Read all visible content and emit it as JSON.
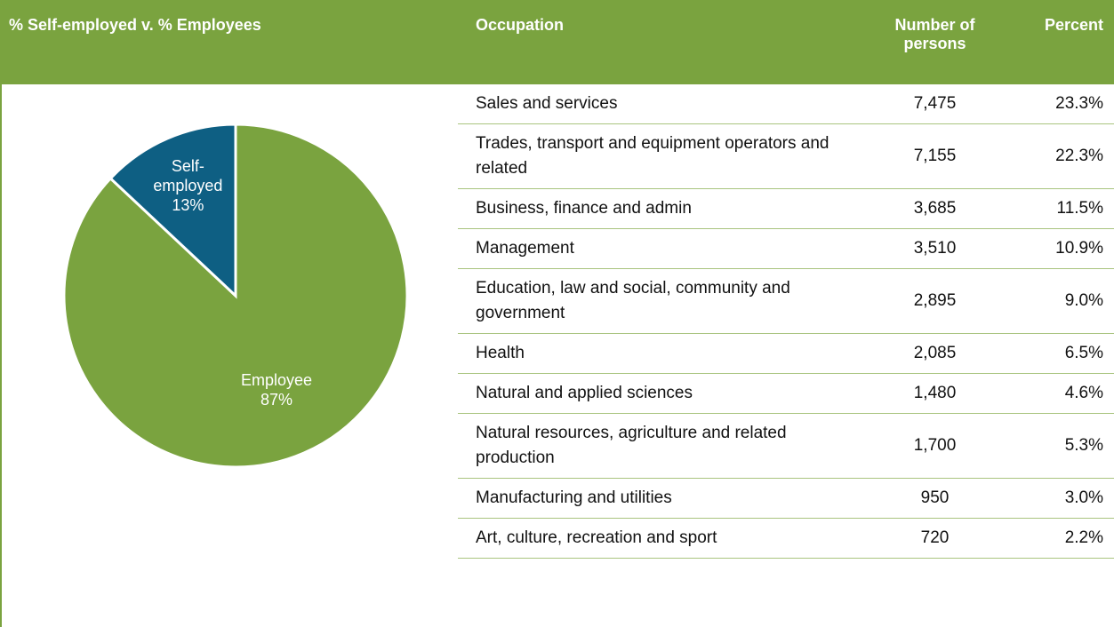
{
  "chart_data": {
    "type": "pie",
    "title": "% Self-employed v. % Employees",
    "categories": [
      "Self-employed",
      "Employee"
    ],
    "values": [
      13,
      87
    ],
    "value_labels": [
      "13%",
      "87%"
    ],
    "colors": [
      "#0e5f83",
      "#7aa33f"
    ]
  },
  "table": {
    "headers": [
      "Occupation",
      "Number of persons",
      "Percent"
    ],
    "rows": [
      [
        "Sales and services",
        "7,475",
        "23.3%"
      ],
      [
        "Trades, transport and equipment operators and related",
        "7,155",
        "22.3%"
      ],
      [
        "Business, finance and admin",
        "3,685",
        "11.5%"
      ],
      [
        "Management",
        "3,510",
        "10.9%"
      ],
      [
        "Education, law and social, community and government",
        "2,895",
        "9.0%"
      ],
      [
        "Health",
        "2,085",
        "6.5%"
      ],
      [
        "Natural and applied sciences",
        "1,480",
        "4.6%"
      ],
      [
        "Natural resources, agriculture and related production",
        "1,700",
        "5.3%"
      ],
      [
        "Manufacturing and utilities",
        "950",
        "3.0%"
      ],
      [
        "Art, culture, recreation and sport",
        "720",
        "2.2%"
      ]
    ]
  }
}
